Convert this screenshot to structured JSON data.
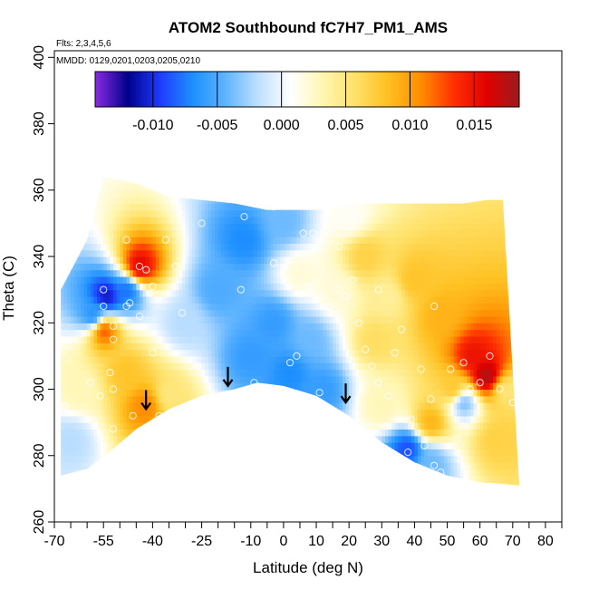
{
  "chart_data": {
    "type": "heatmap",
    "title": "ATOM2 Southbound fC7H7_PM1_AMS",
    "annotations": [
      "Flts: 2,3,4,5,6",
      "MMDD: 0129,0201,0203,0205,0210"
    ],
    "xlabel": "Latitude (deg N)",
    "ylabel": "Theta (C)",
    "xlim": [
      -70,
      85
    ],
    "ylim": [
      260,
      402
    ],
    "x_ticks": [
      -70,
      -65,
      -60,
      -55,
      -50,
      -45,
      -40,
      -35,
      -30,
      -25,
      -20,
      -15,
      -10,
      -5,
      0,
      5,
      10,
      15,
      20,
      25,
      30,
      35,
      40,
      45,
      50,
      55,
      60,
      65,
      70,
      75,
      80,
      85
    ],
    "x_tick_labels": [
      "-70",
      "-55",
      "-40",
      "-25",
      "-10",
      "0",
      "10",
      "20",
      "30",
      "40",
      "50",
      "60",
      "70",
      "80"
    ],
    "x_tick_label_values": [
      -70,
      -55,
      -40,
      -25,
      -10,
      0,
      10,
      20,
      30,
      40,
      50,
      60,
      70,
      80
    ],
    "y_ticks": [
      260,
      280,
      300,
      320,
      340,
      360,
      380,
      400
    ],
    "y_tick_labels": [
      "260",
      "280",
      "300",
      "320",
      "340",
      "360",
      "380",
      "400"
    ],
    "colorbar": {
      "range": [
        -0.0145,
        0.0185
      ],
      "ticks": [
        -0.01,
        -0.005,
        0.0,
        0.005,
        0.01,
        0.015
      ],
      "tick_labels": [
        "-0.010",
        "-0.005",
        "0.000",
        "0.005",
        "0.010",
        "0.015"
      ],
      "colors": [
        "#8a2be2",
        "#00008b",
        "#1e3cff",
        "#1e90ff",
        "#5fb4ff",
        "#bfe0ff",
        "#ffffff",
        "#fff6b0",
        "#ffe066",
        "#ffc020",
        "#ff8c00",
        "#ff3000",
        "#e00000",
        "#9b1c1c"
      ]
    },
    "arrows": [
      {
        "lat": -42,
        "theta": 297
      },
      {
        "lat": -17,
        "theta": 304
      },
      {
        "lat": 19,
        "theta": 299
      }
    ],
    "coverage": {
      "top": [
        [
          -68,
          330
        ],
        [
          -60,
          345
        ],
        [
          -55,
          364
        ],
        [
          -45,
          362
        ],
        [
          -35,
          358
        ],
        [
          -25,
          357
        ],
        [
          -15,
          356
        ],
        [
          -5,
          354
        ],
        [
          10,
          354
        ],
        [
          25,
          356
        ],
        [
          40,
          356
        ],
        [
          55,
          356
        ],
        [
          62,
          357
        ],
        [
          67,
          357
        ]
      ],
      "bottom": [
        [
          -68,
          274
        ],
        [
          -60,
          276
        ],
        [
          -52,
          282
        ],
        [
          -45,
          288
        ],
        [
          -35,
          294
        ],
        [
          -25,
          298
        ],
        [
          -15,
          300
        ],
        [
          -8,
          302
        ],
        [
          0,
          301
        ],
        [
          10,
          298
        ],
        [
          20,
          292
        ],
        [
          30,
          284
        ],
        [
          40,
          278
        ],
        [
          50,
          274
        ],
        [
          60,
          272
        ],
        [
          72,
          271
        ]
      ]
    },
    "field_points": [
      {
        "lat": -54,
        "theta": 328,
        "v": -0.011
      },
      {
        "lat": -58,
        "theta": 322,
        "v": -0.007
      },
      {
        "lat": -55,
        "theta": 318,
        "v": 0.013
      },
      {
        "lat": -44,
        "theta": 337,
        "v": 0.016
      },
      {
        "lat": -48,
        "theta": 330,
        "v": -0.008
      },
      {
        "lat": -42,
        "theta": 295,
        "v": 0.011
      },
      {
        "lat": -48,
        "theta": 305,
        "v": 0.008
      },
      {
        "lat": -35,
        "theta": 298,
        "v": 0.005
      },
      {
        "lat": -30,
        "theta": 320,
        "v": -0.002
      },
      {
        "lat": -20,
        "theta": 330,
        "v": -0.005
      },
      {
        "lat": -12,
        "theta": 345,
        "v": -0.007
      },
      {
        "lat": -10,
        "theta": 310,
        "v": -0.006
      },
      {
        "lat": -3,
        "theta": 320,
        "v": -0.006
      },
      {
        "lat": 2,
        "theta": 305,
        "v": -0.007
      },
      {
        "lat": 8,
        "theta": 315,
        "v": -0.004
      },
      {
        "lat": 12,
        "theta": 300,
        "v": -0.006
      },
      {
        "lat": 16,
        "theta": 330,
        "v": 0.002
      },
      {
        "lat": 25,
        "theta": 340,
        "v": 0.007
      },
      {
        "lat": 32,
        "theta": 328,
        "v": 0.004
      },
      {
        "lat": 40,
        "theta": 333,
        "v": 0.008
      },
      {
        "lat": 48,
        "theta": 322,
        "v": 0.009
      },
      {
        "lat": 58,
        "theta": 310,
        "v": 0.015
      },
      {
        "lat": 62,
        "theta": 304,
        "v": 0.018
      },
      {
        "lat": 55,
        "theta": 296,
        "v": -0.004
      },
      {
        "lat": 45,
        "theta": 290,
        "v": 0.009
      },
      {
        "lat": 52,
        "theta": 300,
        "v": 0.008
      },
      {
        "lat": 38,
        "theta": 282,
        "v": -0.009
      },
      {
        "lat": 45,
        "theta": 278,
        "v": -0.004
      },
      {
        "lat": 30,
        "theta": 295,
        "v": 0.003
      },
      {
        "lat": 65,
        "theta": 285,
        "v": 0.007
      },
      {
        "lat": 68,
        "theta": 300,
        "v": 0.005
      },
      {
        "lat": 28,
        "theta": 315,
        "v": 0.006
      },
      {
        "lat": -62,
        "theta": 300,
        "v": 0.003
      },
      {
        "lat": -65,
        "theta": 285,
        "v": -0.002
      },
      {
        "lat": 0,
        "theta": 350,
        "v": -0.004
      },
      {
        "lat": 20,
        "theta": 352,
        "v": 0.001
      },
      {
        "lat": 5,
        "theta": 335,
        "v": 0.002
      }
    ],
    "obs_points": [
      [
        -55,
        325
      ],
      [
        -52,
        319
      ],
      [
        -52,
        315
      ],
      [
        -48,
        325
      ],
      [
        -47,
        326
      ],
      [
        -44,
        337
      ],
      [
        -33,
        337
      ],
      [
        -46,
        292
      ],
      [
        -38,
        292
      ],
      [
        -55,
        283
      ],
      [
        -52,
        288
      ],
      [
        -59,
        302
      ],
      [
        -67,
        295
      ],
      [
        -53,
        305
      ],
      [
        -55,
        330
      ],
      [
        -48,
        345
      ],
      [
        -44,
        322
      ],
      [
        -19,
        297
      ],
      [
        -9,
        302
      ],
      [
        -13,
        330
      ],
      [
        -12,
        352
      ],
      [
        -3,
        338
      ],
      [
        2,
        308
      ],
      [
        6,
        347
      ],
      [
        8,
        331
      ],
      [
        12,
        328
      ],
      [
        11,
        299
      ],
      [
        17,
        330
      ],
      [
        17,
        343
      ],
      [
        9,
        347
      ],
      [
        21,
        333
      ],
      [
        25,
        312
      ],
      [
        27,
        307
      ],
      [
        29,
        302
      ],
      [
        34,
        311
      ],
      [
        32,
        298
      ],
      [
        38,
        281
      ],
      [
        43,
        283
      ],
      [
        46,
        277
      ],
      [
        51,
        306
      ],
      [
        56,
        276
      ],
      [
        57,
        300
      ],
      [
        60,
        302
      ],
      [
        66,
        300
      ],
      [
        48,
        275
      ],
      [
        53,
        285
      ],
      [
        45,
        297
      ],
      [
        42,
        306
      ],
      [
        23,
        320
      ],
      [
        14,
        325
      ],
      [
        19,
        328
      ],
      [
        4,
        310
      ],
      [
        29,
        330
      ],
      [
        -31,
        323
      ],
      [
        -40,
        311
      ],
      [
        -56,
        298
      ],
      [
        -42,
        336
      ],
      [
        -40,
        331
      ],
      [
        -52,
        300
      ],
      [
        -58,
        290
      ],
      [
        36,
        318
      ],
      [
        46,
        325
      ],
      [
        55,
        308
      ],
      [
        63,
        310
      ],
      [
        70,
        296
      ],
      [
        -36,
        345
      ],
      [
        -25,
        350
      ],
      [
        0,
        360
      ],
      [
        -3,
        355
      ],
      [
        39,
        291
      ]
    ]
  }
}
